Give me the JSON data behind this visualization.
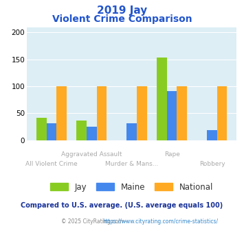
{
  "title_line1": "2019 Jay",
  "title_line2": "Violent Crime Comparison",
  "categories": [
    "All Violent Crime",
    "Aggravated Assault",
    "Murder & Mans...",
    "Rape",
    "Robbery"
  ],
  "series": {
    "Jay": [
      42,
      36,
      0,
      153,
      0
    ],
    "Maine": [
      31,
      25,
      31,
      91,
      18
    ],
    "National": [
      100,
      100,
      100,
      100,
      100
    ]
  },
  "colors": {
    "Jay": "#88cc22",
    "Maine": "#4488ee",
    "National": "#ffaa22"
  },
  "ylim": [
    0,
    210
  ],
  "yticks": [
    0,
    50,
    100,
    150,
    200
  ],
  "bg_color": "#ddeef5",
  "title_color": "#2255cc",
  "subtitle_note": "Compared to U.S. average. (U.S. average equals 100)",
  "subtitle_note_color": "#1a3399",
  "footer_left": "© 2025 CityRating.com - ",
  "footer_link": "https://www.cityrating.com/crime-statistics/",
  "footer_color": "#888888",
  "footer_link_color": "#3388cc",
  "label_color": "#aaaaaa",
  "bar_width": 0.25
}
